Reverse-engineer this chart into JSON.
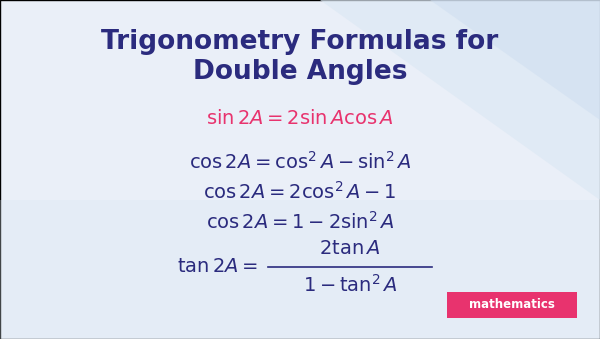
{
  "title_line1": "Trigonometry Formulas for",
  "title_line2": "Double Angles",
  "title_color": "#2b2b7e",
  "title_fontsize": 19,
  "formula_sin_color": "#e8336e",
  "formula_dark_color": "#2b2b7e",
  "formula_sin": "$\\sin 2A = 2\\sin A\\cos A$",
  "formula_cos1": "$\\cos 2A = \\cos^2 A - \\sin^2 A$",
  "formula_cos2": "$\\cos 2A = 2\\cos^2 A - 1$",
  "formula_cos3": "$\\cos 2A = 1 - 2\\sin^2 A$",
  "formula_tan_lhs": "$\\tan 2A = $",
  "formula_tan_num": "$2\\tan A$",
  "formula_tan_den": "$1 - \\tan^2 A$",
  "formula_fontsize": 14,
  "badge_text": "mathematics",
  "badge_bg": "#e8336e",
  "badge_text_color": "#ffffff",
  "bg_left": "#eaf0f8",
  "bg_right_sweep": "#d0dff0"
}
